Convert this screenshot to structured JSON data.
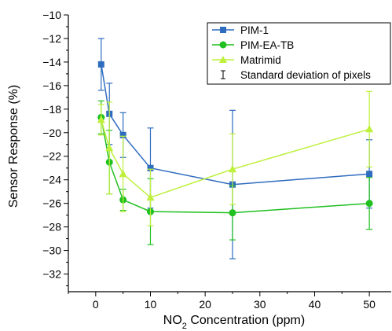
{
  "chart_data": {
    "type": "line",
    "xlabel": {
      "main": "NO",
      "sub": "2",
      "rest": " Concentration (ppm)"
    },
    "ylabel": "Sensor Response (%)",
    "xlim": [
      -5,
      54
    ],
    "ylim": [
      -33.5,
      -10
    ],
    "xticks": [
      0,
      10,
      20,
      30,
      40,
      50
    ],
    "yticks": [
      -32,
      -30,
      -28,
      -26,
      -24,
      -22,
      -20,
      -18,
      -16,
      -14,
      -12,
      -10
    ],
    "x_tick_labels": [
      "0",
      "10",
      "20",
      "30",
      "40",
      "50"
    ],
    "y_tick_labels": [
      "−32",
      "−30",
      "−28",
      "−26",
      "−24",
      "−22",
      "−20",
      "−18",
      "−16",
      "−14",
      "−12",
      "−10"
    ],
    "legend_position": "top-right",
    "legend_errorbar_label": "Standard deviation of pixels",
    "series": [
      {
        "name": "PIM-1",
        "color": "#2e6cbf",
        "marker": "square",
        "x": [
          1,
          2.5,
          5,
          10,
          25,
          50
        ],
        "y": [
          -14.2,
          -18.4,
          -20.2,
          -23.0,
          -24.4,
          -23.5
        ],
        "err": [
          2.2,
          2.6,
          1.9,
          3.4,
          6.3,
          2.9
        ]
      },
      {
        "name": "PIM-EA-TB",
        "color": "#20c020",
        "marker": "circle",
        "x": [
          1,
          2.5,
          5,
          10,
          25,
          50
        ],
        "y": [
          -18.7,
          -22.5,
          -25.7,
          -26.7,
          -26.8,
          -26.0
        ],
        "err": [
          1.4,
          2.7,
          0.9,
          2.8,
          2.3,
          2.2
        ]
      },
      {
        "name": "Matrimid",
        "color": "#bef03c",
        "marker": "triangle",
        "x": [
          1,
          2.5,
          5,
          10,
          25,
          50
        ],
        "y": [
          -18.9,
          -21.3,
          -23.5,
          -25.5,
          -23.1,
          -19.7
        ],
        "err": [
          1.3,
          3.9,
          3.2,
          2.4,
          3.0,
          3.2
        ]
      }
    ]
  }
}
